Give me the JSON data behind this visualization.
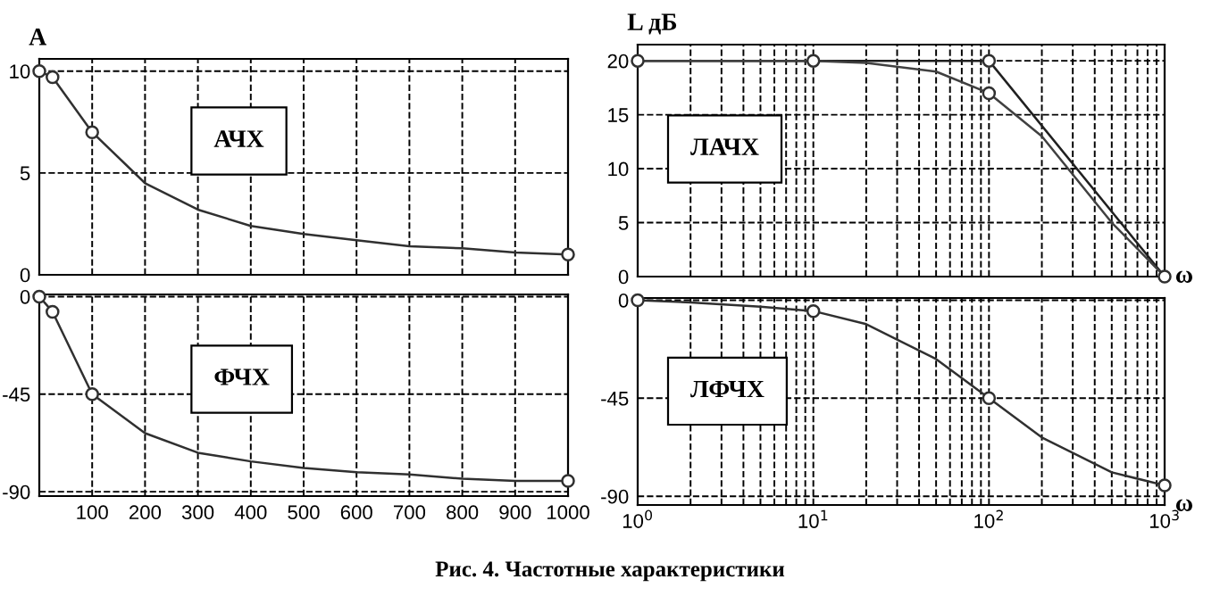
{
  "chart_data": [
    {
      "type": "line",
      "title": "АЧХ",
      "ylabel": "А",
      "xlim": [
        0,
        1000
      ],
      "ylim": [
        0,
        10.6
      ],
      "xticks": [
        100,
        200,
        300,
        400,
        500,
        600,
        700,
        800,
        900,
        1000
      ],
      "yticks": [
        0,
        5,
        10
      ],
      "tick_labels": "y",
      "grid": true,
      "series": [
        {
          "color": "#303030",
          "marker": "none",
          "x": [
            0,
            25,
            100,
            200,
            300,
            400,
            500,
            600,
            700,
            800,
            900,
            1000
          ],
          "values": [
            10,
            9.7,
            7.0,
            4.5,
            3.2,
            2.4,
            2.0,
            1.7,
            1.4,
            1.3,
            1.1,
            1.0
          ]
        },
        {
          "type": "scatter",
          "color": "#303030",
          "marker": "circle",
          "x": [
            0,
            25,
            100,
            1000
          ],
          "values": [
            10,
            9.7,
            7.0,
            1.0
          ]
        }
      ]
    },
    {
      "type": "line",
      "title": "ФЧХ",
      "xlim": [
        0,
        1000
      ],
      "ylim": [
        -92,
        1
      ],
      "xticks": [
        100,
        200,
        300,
        400,
        500,
        600,
        700,
        800,
        900,
        1000
      ],
      "yticks": [
        -90,
        -45,
        0
      ],
      "grid": true,
      "series": [
        {
          "color": "#303030",
          "marker": "none",
          "x": [
            0,
            25,
            100,
            200,
            300,
            400,
            500,
            600,
            700,
            800,
            900,
            1000
          ],
          "values": [
            0,
            -7,
            -45,
            -63,
            -72,
            -76,
            -79,
            -81,
            -82,
            -84,
            -85,
            -85
          ]
        },
        {
          "type": "scatter",
          "color": "#303030",
          "marker": "circle",
          "x": [
            0,
            25,
            100,
            1000
          ],
          "values": [
            0,
            -7,
            -45,
            -85
          ]
        }
      ]
    },
    {
      "type": "line",
      "title": "ЛАЧХ",
      "ylabel": "L дБ",
      "xlabel": "ω",
      "log": "x",
      "xlim": [
        1,
        1000
      ],
      "ylim": [
        0,
        21.5
      ],
      "xticks": [
        1,
        10,
        100,
        1000
      ],
      "yticks": [
        0,
        5,
        10,
        15,
        20
      ],
      "tick_labels": "y",
      "grid": true,
      "series": [
        {
          "color": "#202020",
          "marker": "none",
          "x": [
            1,
            10,
            100,
            1000
          ],
          "values": [
            20,
            20,
            20,
            0
          ]
        },
        {
          "color": "#404040",
          "marker": "none",
          "x": [
            1,
            10,
            20,
            50,
            100,
            200,
            500,
            1000
          ],
          "values": [
            20,
            20,
            19.8,
            19,
            17,
            13,
            5,
            0
          ]
        },
        {
          "type": "scatter",
          "color": "#303030",
          "marker": "circle",
          "x": [
            1,
            10,
            100,
            100,
            1000
          ],
          "values": [
            20,
            20,
            20,
            17,
            0
          ]
        }
      ]
    },
    {
      "type": "line",
      "title": "ЛФЧХ",
      "xlabel": "ω",
      "log": "x",
      "xlim": [
        1,
        1000
      ],
      "ylim": [
        -94,
        1
      ],
      "xticks": [
        {
          "value": 1,
          "label": "10$^{0}$"
        },
        {
          "value": 10,
          "label": "10$^{1}$"
        },
        {
          "value": 100,
          "label": "10$^{2}$"
        },
        {
          "value": 1000,
          "label": "10$^{3}$"
        }
      ],
      "yticks": [
        -90,
        -45,
        0
      ],
      "grid": true,
      "annotations": [
        "Рис. 4. Частотные характеристики"
      ],
      "series": [
        {
          "color": "#303030",
          "marker": "none",
          "x": [
            1,
            2,
            5,
            10,
            20,
            50,
            100,
            200,
            500,
            1000
          ],
          "values": [
            0,
            -1,
            -3,
            -5,
            -11,
            -27,
            -45,
            -63,
            -79,
            -85
          ]
        },
        {
          "type": "scatter",
          "color": "#303030",
          "marker": "circle",
          "x": [
            1,
            10,
            100,
            1000
          ],
          "values": [
            0,
            -5,
            -45,
            -85
          ]
        }
      ]
    }
  ]
}
